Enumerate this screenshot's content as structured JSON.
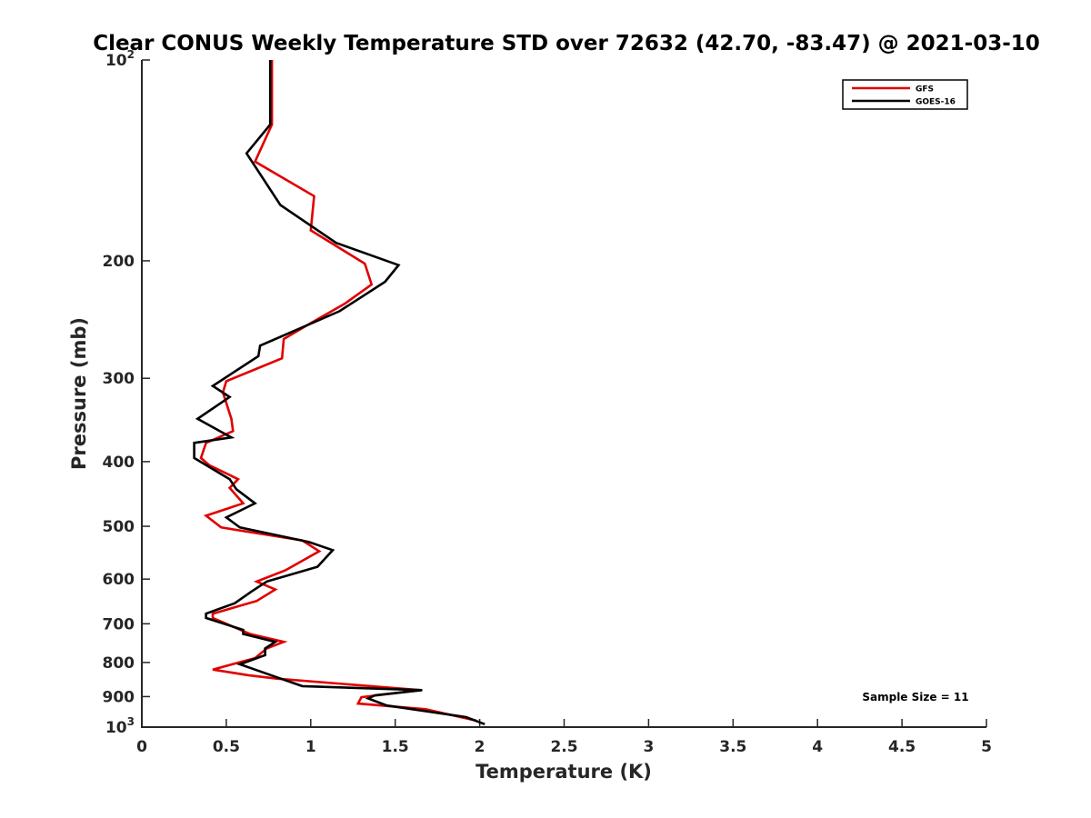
{
  "chart_data": {
    "type": "line",
    "title": "Clear CONUS Weekly Temperature STD over 72632 (42.70, -83.47) @ 2021-03-10",
    "xlabel": "Temperature (K)",
    "ylabel": "Pressure (mb)",
    "xlim": [
      0,
      5
    ],
    "ylim": [
      100,
      1000
    ],
    "y_scale": "log",
    "y_reversed": true,
    "x_ticks": [
      "0",
      "0.5",
      "1",
      "1.5",
      "2",
      "2.5",
      "3",
      "3.5",
      "4",
      "4.5",
      "5"
    ],
    "y_ticks": [
      {
        "value": 100,
        "base": "10",
        "exp": "2"
      },
      {
        "value": 200,
        "label": "200"
      },
      {
        "value": 300,
        "label": "300"
      },
      {
        "value": 400,
        "label": "400"
      },
      {
        "value": 500,
        "label": "500"
      },
      {
        "value": 600,
        "label": "600"
      },
      {
        "value": 700,
        "label": "700"
      },
      {
        "value": 800,
        "label": "800"
      },
      {
        "value": 900,
        "label": "900"
      },
      {
        "value": 1000,
        "base": "10",
        "exp": "3"
      }
    ],
    "legend": {
      "placement": "top-right"
    },
    "annotation": "Sample Size = 11",
    "grid": false,
    "series": [
      {
        "name": "GFS",
        "color": "#e00000",
        "points": [
          [
            0.77,
            100
          ],
          [
            0.77,
            125
          ],
          [
            0.67,
            142
          ],
          [
            1.02,
            160
          ],
          [
            1.0,
            180
          ],
          [
            1.32,
            202
          ],
          [
            1.36,
            217
          ],
          [
            1.2,
            232
          ],
          [
            1.0,
            248
          ],
          [
            0.84,
            262
          ],
          [
            0.83,
            280
          ],
          [
            0.5,
            303
          ],
          [
            0.48,
            315
          ],
          [
            0.53,
            345
          ],
          [
            0.54,
            360
          ],
          [
            0.38,
            375
          ],
          [
            0.35,
            395
          ],
          [
            0.4,
            405
          ],
          [
            0.57,
            425
          ],
          [
            0.52,
            438
          ],
          [
            0.6,
            462
          ],
          [
            0.38,
            482
          ],
          [
            0.47,
            502
          ],
          [
            0.95,
            525
          ],
          [
            1.05,
            545
          ],
          [
            0.85,
            582
          ],
          [
            0.68,
            605
          ],
          [
            0.79,
            622
          ],
          [
            0.68,
            647
          ],
          [
            0.42,
            676
          ],
          [
            0.42,
            686
          ],
          [
            0.64,
            725
          ],
          [
            0.84,
            745
          ],
          [
            0.74,
            762
          ],
          [
            0.67,
            788
          ],
          [
            0.42,
            820
          ],
          [
            0.63,
            836
          ],
          [
            0.8,
            846
          ],
          [
            1.65,
            880
          ],
          [
            1.3,
            902
          ],
          [
            1.28,
            922
          ],
          [
            1.68,
            940
          ],
          [
            1.98,
            978
          ]
        ]
      },
      {
        "name": "GOES-16",
        "color": "#000000",
        "points": [
          [
            0.76,
            100
          ],
          [
            0.76,
            125
          ],
          [
            0.62,
            138
          ],
          [
            0.82,
            165
          ],
          [
            1.15,
            188
          ],
          [
            1.52,
            203
          ],
          [
            1.44,
            215
          ],
          [
            1.17,
            238
          ],
          [
            0.7,
            268
          ],
          [
            0.69,
            278
          ],
          [
            0.42,
            308
          ],
          [
            0.52,
            320
          ],
          [
            0.33,
            345
          ],
          [
            0.53,
            368
          ],
          [
            0.31,
            375
          ],
          [
            0.31,
            395
          ],
          [
            0.52,
            425
          ],
          [
            0.56,
            440
          ],
          [
            0.67,
            462
          ],
          [
            0.5,
            485
          ],
          [
            0.58,
            502
          ],
          [
            0.99,
            528
          ],
          [
            1.13,
            543
          ],
          [
            1.04,
            575
          ],
          [
            0.74,
            605
          ],
          [
            0.65,
            626
          ],
          [
            0.55,
            652
          ],
          [
            0.38,
            676
          ],
          [
            0.38,
            686
          ],
          [
            0.6,
            715
          ],
          [
            0.6,
            725
          ],
          [
            0.79,
            745
          ],
          [
            0.73,
            762
          ],
          [
            0.73,
            780
          ],
          [
            0.58,
            805
          ],
          [
            0.8,
            842
          ],
          [
            0.95,
            868
          ],
          [
            1.66,
            880
          ],
          [
            1.38,
            896
          ],
          [
            1.34,
            906
          ],
          [
            1.45,
            928
          ],
          [
            1.92,
            966
          ],
          [
            2.03,
            990
          ]
        ]
      }
    ]
  }
}
